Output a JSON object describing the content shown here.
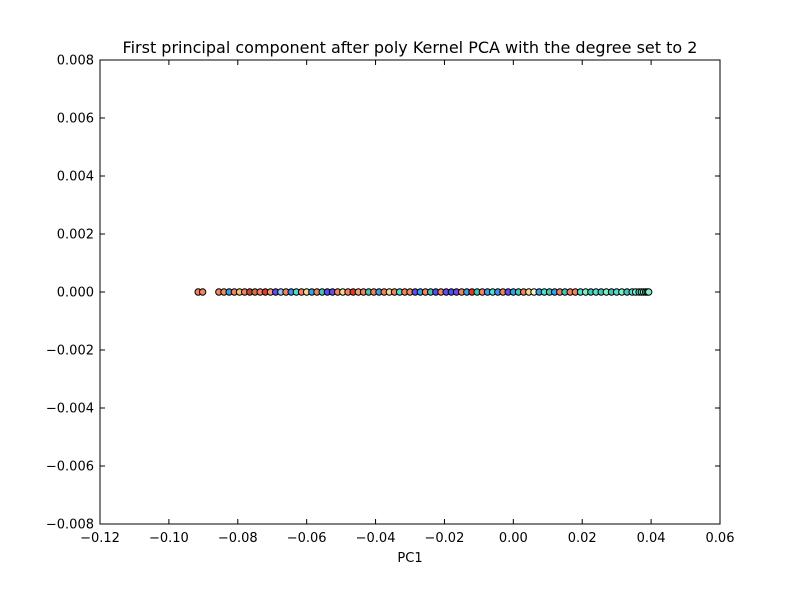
{
  "chart_data": {
    "type": "scatter",
    "title": "First principal component after poly Kernel PCA with the degree set to 2",
    "xlabel": "PC1",
    "ylabel": "",
    "xlim": [
      -0.12,
      0.06
    ],
    "ylim": [
      -0.008,
      0.008
    ],
    "xticks": [
      -0.12,
      -0.1,
      -0.08,
      -0.06,
      -0.04,
      -0.02,
      0.0,
      0.02,
      0.04,
      0.06
    ],
    "xtick_labels": [
      "−0.12",
      "−0.10",
      "−0.08",
      "−0.06",
      "−0.04",
      "−0.02",
      "0.00",
      "0.02",
      "0.04",
      "0.06"
    ],
    "yticks": [
      -0.008,
      -0.006,
      -0.004,
      -0.002,
      0.0,
      0.002,
      0.004,
      0.006,
      0.008
    ],
    "ytick_labels": [
      "−0.008",
      "−0.006",
      "−0.004",
      "−0.002",
      "0.000",
      "0.002",
      "0.004",
      "0.006",
      "0.008"
    ],
    "grid": false,
    "marker_edge_color": "#000000",
    "points": [
      {
        "x": -0.0915,
        "y": 0,
        "color": "#f4845f"
      },
      {
        "x": -0.0902,
        "y": 0,
        "color": "#f4845f"
      },
      {
        "x": -0.0855,
        "y": 0,
        "color": "#f4845f"
      },
      {
        "x": -0.084,
        "y": 0,
        "color": "#e8935a"
      },
      {
        "x": -0.0825,
        "y": 0,
        "color": "#3aa0e8"
      },
      {
        "x": -0.081,
        "y": 0,
        "color": "#f4845f"
      },
      {
        "x": -0.0795,
        "y": 0,
        "color": "#f4c070"
      },
      {
        "x": -0.078,
        "y": 0,
        "color": "#f4845f"
      },
      {
        "x": -0.0765,
        "y": 0,
        "color": "#c24a3a"
      },
      {
        "x": -0.075,
        "y": 0,
        "color": "#d9704a"
      },
      {
        "x": -0.0735,
        "y": 0,
        "color": "#f4845f"
      },
      {
        "x": -0.072,
        "y": 0,
        "color": "#e03a2a"
      },
      {
        "x": -0.0705,
        "y": 0,
        "color": "#f4a070"
      },
      {
        "x": -0.069,
        "y": 0,
        "color": "#6a4af0"
      },
      {
        "x": -0.0675,
        "y": 0,
        "color": "#90c8f8"
      },
      {
        "x": -0.066,
        "y": 0,
        "color": "#f4845f"
      },
      {
        "x": -0.0645,
        "y": 0,
        "color": "#4090f0"
      },
      {
        "x": -0.063,
        "y": 0,
        "color": "#50e0d0"
      },
      {
        "x": -0.0615,
        "y": 0,
        "color": "#f4845f"
      },
      {
        "x": -0.06,
        "y": 0,
        "color": "#f8d890"
      },
      {
        "x": -0.0585,
        "y": 0,
        "color": "#3aa0e8"
      },
      {
        "x": -0.057,
        "y": 0,
        "color": "#f4845f"
      },
      {
        "x": -0.0555,
        "y": 0,
        "color": "#40c8b8"
      },
      {
        "x": -0.054,
        "y": 0,
        "color": "#5050f0"
      },
      {
        "x": -0.0525,
        "y": 0,
        "color": "#6a4af0"
      },
      {
        "x": -0.051,
        "y": 0,
        "color": "#f4845f"
      },
      {
        "x": -0.0495,
        "y": 0,
        "color": "#f8d890"
      },
      {
        "x": -0.048,
        "y": 0,
        "color": "#f4845f"
      },
      {
        "x": -0.0465,
        "y": 0,
        "color": "#e03a2a"
      },
      {
        "x": -0.045,
        "y": 0,
        "color": "#f4a070"
      },
      {
        "x": -0.0435,
        "y": 0,
        "color": "#f4845f"
      },
      {
        "x": -0.042,
        "y": 0,
        "color": "#40c8b8"
      },
      {
        "x": -0.0405,
        "y": 0,
        "color": "#f4845f"
      },
      {
        "x": -0.039,
        "y": 0,
        "color": "#3aa0e8"
      },
      {
        "x": -0.0375,
        "y": 0,
        "color": "#f4845f"
      },
      {
        "x": -0.036,
        "y": 0,
        "color": "#f8d890"
      },
      {
        "x": -0.0345,
        "y": 0,
        "color": "#f4845f"
      },
      {
        "x": -0.033,
        "y": 0,
        "color": "#50e0d0"
      },
      {
        "x": -0.0315,
        "y": 0,
        "color": "#f4845f"
      },
      {
        "x": -0.03,
        "y": 0,
        "color": "#e8935a"
      },
      {
        "x": -0.0285,
        "y": 0,
        "color": "#6a4af0"
      },
      {
        "x": -0.027,
        "y": 0,
        "color": "#3aa0e8"
      },
      {
        "x": -0.0255,
        "y": 0,
        "color": "#f4845f"
      },
      {
        "x": -0.024,
        "y": 0,
        "color": "#40c8b8"
      },
      {
        "x": -0.0225,
        "y": 0,
        "color": "#5050f0"
      },
      {
        "x": -0.021,
        "y": 0,
        "color": "#f4845f"
      },
      {
        "x": -0.0195,
        "y": 0,
        "color": "#6a4af0"
      },
      {
        "x": -0.018,
        "y": 0,
        "color": "#5050f0"
      },
      {
        "x": -0.0165,
        "y": 0,
        "color": "#6a4af0"
      },
      {
        "x": -0.015,
        "y": 0,
        "color": "#f4845f"
      },
      {
        "x": -0.0135,
        "y": 0,
        "color": "#3aa0e8"
      },
      {
        "x": -0.012,
        "y": 0,
        "color": "#e03a2a"
      },
      {
        "x": -0.0105,
        "y": 0,
        "color": "#40c8b8"
      },
      {
        "x": -0.009,
        "y": 0,
        "color": "#f4845f"
      },
      {
        "x": -0.0075,
        "y": 0,
        "color": "#3aa0e8"
      },
      {
        "x": -0.006,
        "y": 0,
        "color": "#50e0d0"
      },
      {
        "x": -0.0045,
        "y": 0,
        "color": "#4090f0"
      },
      {
        "x": -0.003,
        "y": 0,
        "color": "#f4845f"
      },
      {
        "x": -0.0015,
        "y": 0,
        "color": "#6a4af0"
      },
      {
        "x": 0.0,
        "y": 0,
        "color": "#3aa0e8"
      },
      {
        "x": 0.0015,
        "y": 0,
        "color": "#40c8b8"
      },
      {
        "x": 0.003,
        "y": 0,
        "color": "#f4845f"
      },
      {
        "x": 0.0045,
        "y": 0,
        "color": "#f8d890"
      },
      {
        "x": 0.006,
        "y": 0,
        "color": "#f8f0d0"
      },
      {
        "x": 0.0075,
        "y": 0,
        "color": "#3aa0e8"
      },
      {
        "x": 0.009,
        "y": 0,
        "color": "#50e0d0"
      },
      {
        "x": 0.0105,
        "y": 0,
        "color": "#40c8b8"
      },
      {
        "x": 0.012,
        "y": 0,
        "color": "#3aa0e8"
      },
      {
        "x": 0.0135,
        "y": 0,
        "color": "#f4845f"
      },
      {
        "x": 0.015,
        "y": 0,
        "color": "#40c8b8"
      },
      {
        "x": 0.0165,
        "y": 0,
        "color": "#f4845f"
      },
      {
        "x": 0.018,
        "y": 0,
        "color": "#f4845f"
      },
      {
        "x": 0.0195,
        "y": 0,
        "color": "#50e0d0"
      },
      {
        "x": 0.021,
        "y": 0,
        "color": "#80f0c0"
      },
      {
        "x": 0.0225,
        "y": 0,
        "color": "#40c8b8"
      },
      {
        "x": 0.024,
        "y": 0,
        "color": "#50e0d0"
      },
      {
        "x": 0.0255,
        "y": 0,
        "color": "#40c8b8"
      },
      {
        "x": 0.027,
        "y": 0,
        "color": "#80f0c0"
      },
      {
        "x": 0.0285,
        "y": 0,
        "color": "#40c8b8"
      },
      {
        "x": 0.03,
        "y": 0,
        "color": "#50e0d0"
      },
      {
        "x": 0.0315,
        "y": 0,
        "color": "#80f0c0"
      },
      {
        "x": 0.033,
        "y": 0,
        "color": "#40c8b8"
      },
      {
        "x": 0.0345,
        "y": 0,
        "color": "#50e0d0"
      },
      {
        "x": 0.0355,
        "y": 0,
        "color": "#80f0c0"
      },
      {
        "x": 0.0365,
        "y": 0,
        "color": "#40c8b8"
      },
      {
        "x": 0.0372,
        "y": 0,
        "color": "#50e0d0"
      },
      {
        "x": 0.0378,
        "y": 0,
        "color": "#80f0c0"
      },
      {
        "x": 0.0384,
        "y": 0,
        "color": "#40c8b8"
      },
      {
        "x": 0.0389,
        "y": 0,
        "color": "#50e0d0"
      },
      {
        "x": 0.0393,
        "y": 0,
        "color": "#80f0c0"
      }
    ]
  }
}
